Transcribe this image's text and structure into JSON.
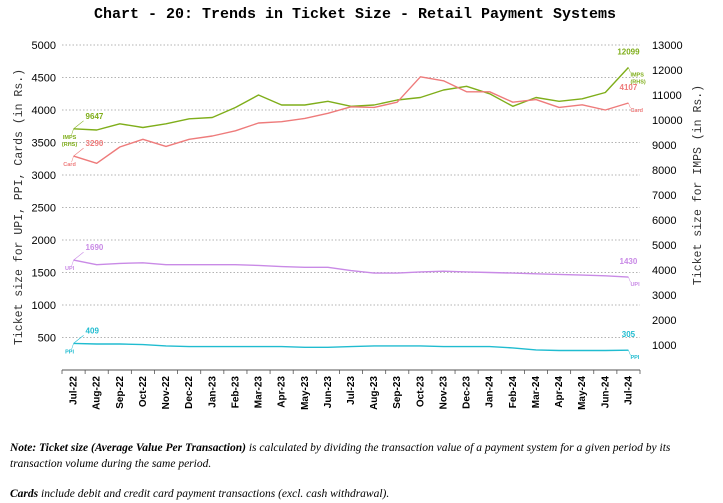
{
  "chart_data": {
    "type": "line",
    "title": "Chart - 20: Trends in Ticket Size - Retail Payment Systems",
    "ylabel_left": "Ticket size for UPI, PPI, Cards (in Rs.)",
    "ylabel_right": "Ticket size for IMPS (in Rs.)",
    "ylim_left": [
      0,
      5000
    ],
    "yticks_left": [
      500,
      1000,
      1500,
      2000,
      2500,
      3000,
      3500,
      4000,
      4500,
      5000
    ],
    "ylim_right": [
      0,
      13000
    ],
    "yticks_right": [
      1000,
      2000,
      3000,
      4000,
      5000,
      6000,
      7000,
      8000,
      9000,
      10000,
      11000,
      12000,
      13000
    ],
    "categories": [
      "Jul-22",
      "Aug-22",
      "Sep-22",
      "Oct-22",
      "Nov-22",
      "Dec-22",
      "Jan-23",
      "Feb-23",
      "Mar-23",
      "Apr-23",
      "May-23",
      "Jun-23",
      "Jul-23",
      "Aug-23",
      "Sep-23",
      "Oct-23",
      "Nov-23",
      "Dec-23",
      "Jan-24",
      "Feb-24",
      "Mar-24",
      "Apr-24",
      "May-24",
      "Jun-24",
      "Jul-24"
    ],
    "series": [
      {
        "name": "IMPS (RHS)",
        "short": "IMPS",
        "axis": "right",
        "color": "#7fae1a",
        "values": [
          9647,
          9600,
          9850,
          9700,
          9850,
          10050,
          10100,
          10500,
          11000,
          10600,
          10600,
          10750,
          10550,
          10600,
          10800,
          10900,
          11200,
          11350,
          11050,
          10550,
          10900,
          10750,
          10850,
          11100,
          12099
        ]
      },
      {
        "name": "Card",
        "short": "Card",
        "axis": "left",
        "color": "#ee7b7b",
        "values": [
          3290,
          3180,
          3430,
          3550,
          3440,
          3550,
          3600,
          3680,
          3800,
          3820,
          3870,
          3950,
          4050,
          4040,
          4120,
          4510,
          4450,
          4280,
          4280,
          4120,
          4160,
          4040,
          4080,
          4000,
          4107
        ]
      },
      {
        "name": "UPI",
        "short": "UPI",
        "axis": "left",
        "color": "#c98ae6",
        "values": [
          1690,
          1620,
          1640,
          1650,
          1620,
          1620,
          1620,
          1620,
          1610,
          1590,
          1580,
          1580,
          1530,
          1490,
          1490,
          1510,
          1520,
          1510,
          1500,
          1490,
          1480,
          1470,
          1460,
          1450,
          1430
        ]
      },
      {
        "name": "PPI",
        "short": "PPI",
        "axis": "left",
        "color": "#20bcd0",
        "values": [
          409,
          400,
          400,
          390,
          370,
          360,
          360,
          360,
          360,
          360,
          350,
          350,
          360,
          370,
          370,
          370,
          360,
          360,
          360,
          340,
          310,
          300,
          300,
          300,
          305
        ]
      }
    ],
    "annotations": [
      {
        "series": "IMPS (RHS)",
        "start_label": "9647",
        "end_label": "12099",
        "tag": "IMPS",
        "tag2": "(RHS)"
      },
      {
        "series": "Card",
        "start_label": "3290",
        "end_label": "4107",
        "tag": "Card"
      },
      {
        "series": "UPI",
        "start_label": "1690",
        "end_label": "1430",
        "tag": "UPI"
      },
      {
        "series": "PPI",
        "start_label": "409",
        "end_label": "305",
        "tag": "PPI"
      }
    ],
    "grid": "horizontal dotted"
  },
  "notes": {
    "note1_bold": "Note: Ticket size (Average Value Per Transaction)",
    "note1_rest": " is calculated by dividing the transaction value of a payment system for a given period by its transaction volume during the same period.",
    "note2_bold": "Cards",
    "note2_rest": " include debit and credit card payment transactions (excl. cash withdrawal)."
  }
}
